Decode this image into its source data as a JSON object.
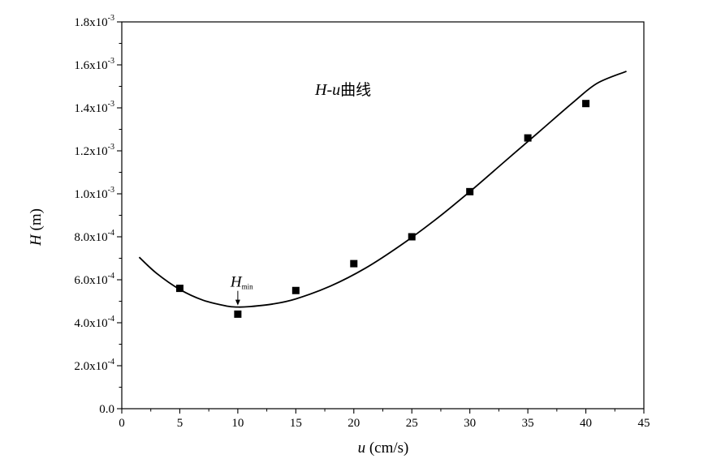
{
  "chart_data": {
    "type": "scatter",
    "title_main": "H-u",
    "title_suffix": "曲线",
    "xlabel_var": "u",
    "xlabel_unit": " (cm/s)",
    "ylabel_var": "H",
    "ylabel_unit": " (m)",
    "xlim": [
      0,
      45
    ],
    "ylim": [
      0,
      0.0018
    ],
    "x_ticks": [
      0,
      5,
      10,
      15,
      20,
      25,
      30,
      35,
      40,
      45
    ],
    "x_tick_labels": [
      "0",
      "5",
      "10",
      "15",
      "20",
      "25",
      "30",
      "35",
      "40",
      "45"
    ],
    "y_ticks": [
      0,
      0.0002,
      0.0004,
      0.0006,
      0.0008,
      0.001,
      0.0012,
      0.0014,
      0.0016,
      0.0018
    ],
    "y_tick_labels": [
      {
        "base": "0.0",
        "exp": ""
      },
      {
        "base": "2.0x10",
        "exp": "-4"
      },
      {
        "base": "4.0x10",
        "exp": "-4"
      },
      {
        "base": "6.0x10",
        "exp": "-4"
      },
      {
        "base": "8.0x10",
        "exp": "-4"
      },
      {
        "base": "1.0x10",
        "exp": "-3"
      },
      {
        "base": "1.2x10",
        "exp": "-3"
      },
      {
        "base": "1.4x10",
        "exp": "-3"
      },
      {
        "base": "1.6x10",
        "exp": "-3"
      },
      {
        "base": "1.8x10",
        "exp": "-3"
      }
    ],
    "grid": false,
    "series": [
      {
        "kind": "points",
        "marker": "square",
        "x": [
          5,
          10,
          15,
          20,
          25,
          30,
          35,
          40
        ],
        "y": [
          0.00056,
          0.00044,
          0.00055,
          0.000675,
          0.0008,
          0.00101,
          0.00126,
          0.00142
        ]
      },
      {
        "kind": "fit-curve",
        "x": [
          1.5,
          3,
          5,
          7,
          9,
          10,
          11,
          13,
          15,
          18,
          21,
          24,
          27,
          30,
          33,
          36,
          39,
          41,
          43.5
        ],
        "y": [
          0.000705,
          0.00063,
          0.000555,
          0.000505,
          0.000478,
          0.000473,
          0.000475,
          0.000487,
          0.000511,
          0.000571,
          0.000654,
          0.000759,
          0.000878,
          0.00101,
          0.00115,
          0.00129,
          0.00143,
          0.001515,
          0.00157
        ]
      }
    ],
    "annotation": {
      "var": "H",
      "sub": "min",
      "target_x": 10,
      "target_y": 0.000473
    }
  }
}
